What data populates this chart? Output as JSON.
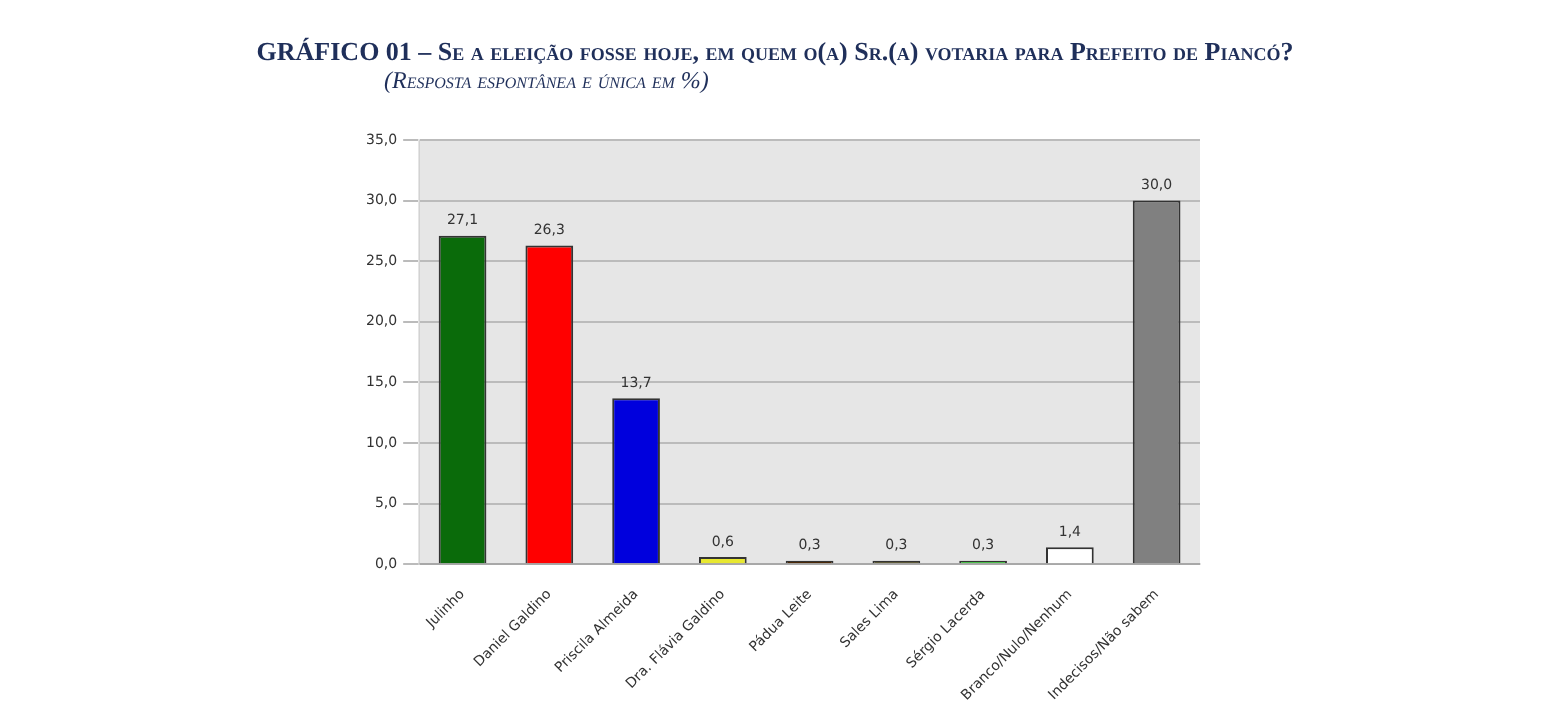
{
  "chart_data": {
    "type": "bar",
    "title": "GRÁFICO 01 – Se a eleição fosse hoje, em quem o(a) Sr.(a) votaria para Prefeito de Piancó?",
    "subtitle": "(Resposta espontânea e única em %)",
    "categories": [
      "Julinho",
      "Daniel Galdino",
      "Priscila Almeida",
      "Dra. Flávia Galdino",
      "Pádua Leite",
      "Sales Lima",
      "Sérgio Lacerda",
      "Branco/Nulo/Nenhum",
      "Indecisos/Não sabem"
    ],
    "values": [
      27.1,
      26.3,
      13.7,
      0.6,
      0.3,
      0.3,
      0.3,
      1.4,
      30.0
    ],
    "colors": [
      "#0a6b0a",
      "#ff0000",
      "#0000dd",
      "#e8e830",
      "#4a2808",
      "#5e5a3a",
      "#4cc04c",
      "#ffffff",
      "#808080"
    ],
    "value_labels": [
      "27,1",
      "26,3",
      "13,7",
      "0,6",
      "0,3",
      "0,3",
      "0,3",
      "1,4",
      "30,0"
    ],
    "ylim": [
      0,
      35
    ],
    "yticks": [
      {
        "value": 0,
        "label": "0,0"
      },
      {
        "value": 5,
        "label": "5,0"
      },
      {
        "value": 10,
        "label": "10,0"
      },
      {
        "value": 15,
        "label": "15,0"
      },
      {
        "value": 20,
        "label": "20,0"
      },
      {
        "value": 25,
        "label": "25,0"
      },
      {
        "value": 30,
        "label": "30,0"
      },
      {
        "value": 35,
        "label": "35,0"
      }
    ],
    "grid": "y",
    "legend": false
  }
}
